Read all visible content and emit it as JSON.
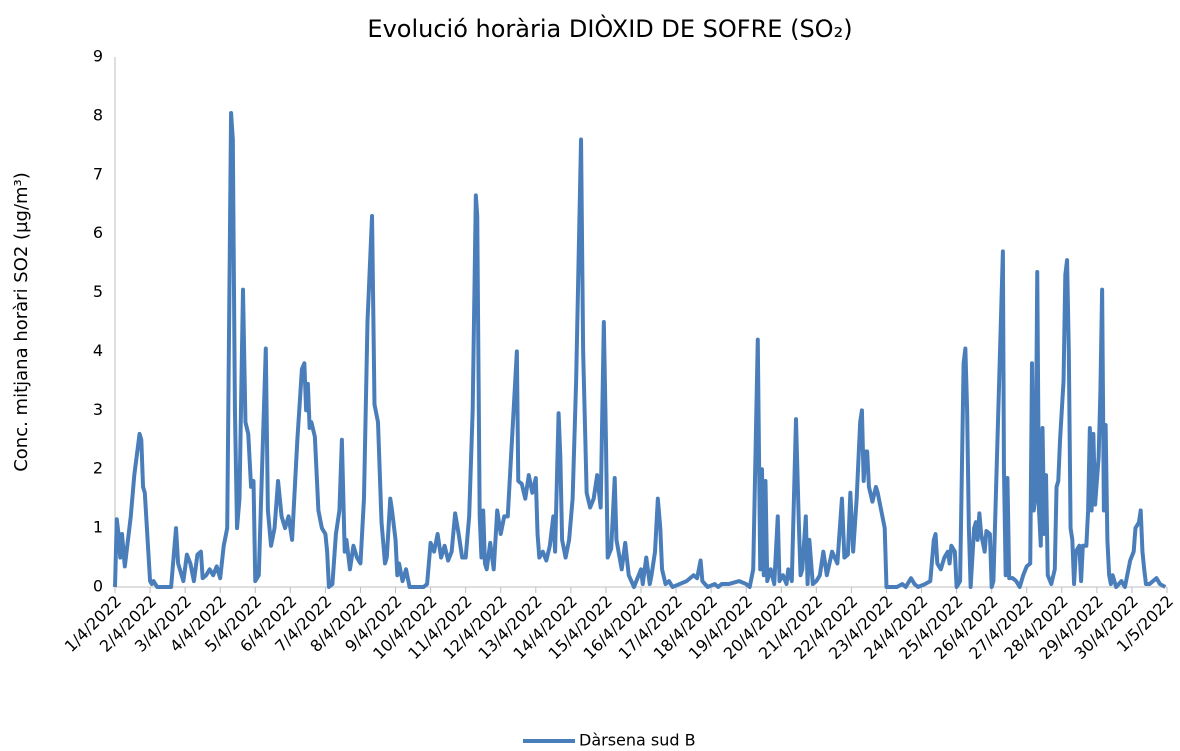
{
  "chart_data": {
    "type": "line",
    "title": "Evolució horària DIÒXID DE SOFRE (SO₂)",
    "y_label": "Conc. mitjana horàri SO2 (µg/m³)",
    "xlim": [
      0,
      30
    ],
    "xticks": [
      {
        "value": 0,
        "label": "1/4/2022"
      },
      {
        "value": 1,
        "label": "2/4/2022"
      },
      {
        "value": 2,
        "label": "3/4/2022"
      },
      {
        "value": 3,
        "label": "4/4/2022"
      },
      {
        "value": 4,
        "label": "5/4/2022"
      },
      {
        "value": 5,
        "label": "6/4/2022"
      },
      {
        "value": 6,
        "label": "7/4/2022"
      },
      {
        "value": 7,
        "label": "8/4/2022"
      },
      {
        "value": 8,
        "label": "9/4/2022"
      },
      {
        "value": 9,
        "label": "10/4/2022"
      },
      {
        "value": 10,
        "label": "11/4/2022"
      },
      {
        "value": 11,
        "label": "12/4/2022"
      },
      {
        "value": 12,
        "label": "13/4/2022"
      },
      {
        "value": 13,
        "label": "14/4/2022"
      },
      {
        "value": 14,
        "label": "15/4/2022"
      },
      {
        "value": 15,
        "label": "16/4/2022"
      },
      {
        "value": 16,
        "label": "17/4/2022"
      },
      {
        "value": 17,
        "label": "18/4/2022"
      },
      {
        "value": 18,
        "label": "19/4/2022"
      },
      {
        "value": 19,
        "label": "20/4/2022"
      },
      {
        "value": 20,
        "label": "21/4/2022"
      },
      {
        "value": 21,
        "label": "22/4/2022"
      },
      {
        "value": 22,
        "label": "23/4/2022"
      },
      {
        "value": 23,
        "label": "24/4/2022"
      },
      {
        "value": 24,
        "label": "25/4/2022"
      },
      {
        "value": 25,
        "label": "26/4/2022"
      },
      {
        "value": 26,
        "label": "27/4/2022"
      },
      {
        "value": 27,
        "label": "28/4/2022"
      },
      {
        "value": 28,
        "label": "29/4/2022"
      },
      {
        "value": 29,
        "label": "30/4/2022"
      },
      {
        "value": 30,
        "label": "1/5/2022"
      }
    ],
    "ylim": [
      0,
      9
    ],
    "yticks": [
      0,
      1,
      2,
      3,
      4,
      5,
      6,
      7,
      8,
      9
    ],
    "grid": false,
    "legend": "bottom",
    "x": [
      0,
      0.05,
      0.1,
      0.15,
      0.2,
      0.28,
      0.35,
      0.45,
      0.55,
      0.7,
      0.75,
      0.8,
      0.85,
      0.95,
      1.0,
      1.05,
      1.1,
      1.2,
      1.6,
      1.74,
      1.8,
      1.95,
      2.05,
      2.15,
      2.25,
      2.35,
      2.45,
      2.5,
      2.6,
      2.7,
      2.8,
      2.9,
      3.0,
      3.1,
      3.2,
      3.31,
      3.36,
      3.42,
      3.48,
      3.55,
      3.65,
      3.72,
      3.8,
      3.88,
      3.95,
      4.0,
      4.1,
      4.3,
      4.36,
      4.45,
      4.55,
      4.65,
      4.75,
      4.85,
      4.95,
      5.05,
      5.2,
      5.33,
      5.4,
      5.45,
      5.5,
      5.55,
      5.6,
      5.7,
      5.8,
      5.9,
      6.0,
      6.05,
      6.1,
      6.2,
      6.3,
      6.4,
      6.47,
      6.55,
      6.6,
      6.7,
      6.8,
      6.9,
      7.0,
      7.1,
      7.2,
      7.33,
      7.4,
      7.5,
      7.6,
      7.7,
      7.75,
      7.85,
      7.9,
      8.0,
      8.05,
      8.1,
      8.2,
      8.3,
      8.4,
      8.8,
      8.9,
      9.0,
      9.1,
      9.2,
      9.3,
      9.4,
      9.5,
      9.6,
      9.7,
      9.8,
      9.9,
      10.0,
      10.1,
      10.2,
      10.29,
      10.33,
      10.4,
      10.45,
      10.5,
      10.55,
      10.6,
      10.7,
      10.8,
      10.9,
      11.0,
      11.1,
      11.2,
      11.46,
      11.5,
      11.6,
      11.7,
      11.8,
      11.9,
      12.0,
      12.05,
      12.1,
      12.2,
      12.3,
      12.4,
      12.5,
      12.55,
      12.65,
      12.7,
      12.75,
      12.85,
      12.95,
      13.05,
      13.15,
      13.29,
      13.35,
      13.45,
      13.55,
      13.65,
      13.75,
      13.85,
      13.94,
      14.0,
      14.05,
      14.15,
      14.25,
      14.3,
      14.45,
      14.55,
      14.65,
      14.8,
      15.0,
      15.05,
      15.15,
      15.25,
      15.3,
      15.4,
      15.48,
      15.55,
      15.6,
      15.7,
      15.8,
      15.9,
      16.1,
      16.3,
      16.5,
      16.6,
      16.7,
      16.75,
      16.9,
      17.1,
      17.2,
      17.3,
      17.5,
      17.8,
      18.0,
      18.1,
      18.2,
      18.33,
      18.4,
      18.45,
      18.5,
      18.55,
      18.6,
      18.7,
      18.8,
      18.9,
      18.95,
      19.05,
      19.15,
      19.2,
      19.3,
      19.42,
      19.5,
      19.55,
      19.6,
      19.7,
      19.75,
      19.8,
      19.9,
      20.0,
      20.1,
      20.2,
      20.3,
      20.45,
      20.6,
      20.73,
      20.8,
      20.9,
      20.97,
      21.05,
      21.15,
      21.25,
      21.3,
      21.35,
      21.4,
      21.45,
      21.5,
      21.6,
      21.7,
      21.75,
      21.85,
      21.95,
      22.0,
      22.3,
      22.45,
      22.55,
      22.7,
      22.8,
      22.9,
      23.1,
      23.25,
      23.35,
      23.4,
      23.45,
      23.55,
      23.65,
      23.75,
      23.8,
      23.85,
      23.95,
      24.0,
      24.1,
      24.2,
      24.25,
      24.3,
      24.35,
      24.4,
      24.5,
      24.55,
      24.6,
      24.65,
      24.7,
      24.8,
      24.85,
      24.95,
      25.0,
      25.05,
      25.32,
      25.35,
      25.4,
      25.45,
      25.5,
      25.6,
      25.7,
      25.8,
      25.9,
      26.0,
      26.1,
      26.15,
      26.2,
      26.25,
      26.3,
      26.35,
      26.4,
      26.45,
      26.5,
      26.55,
      26.6,
      26.7,
      26.8,
      26.85,
      26.9,
      26.95,
      27.05,
      27.1,
      27.15,
      27.2,
      27.25,
      27.3,
      27.35,
      27.4,
      27.5,
      27.55,
      27.6,
      27.7,
      27.75,
      27.8,
      27.85,
      27.9,
      27.95,
      28.05,
      28.1,
      28.15,
      28.2,
      28.25,
      28.3,
      28.35,
      28.4,
      28.45,
      28.55,
      28.7,
      28.8,
      28.9,
      28.95,
      29.05,
      29.1,
      29.2,
      29.25,
      29.3,
      29.35,
      29.4,
      29.5,
      29.6,
      29.7,
      29.8,
      29.95
    ],
    "series": [
      {
        "name": "Dàrsena sud B",
        "color": "#4a7ebb",
        "values": [
          0,
          1.15,
          0.9,
          0.5,
          0.9,
          0.35,
          0.7,
          1.2,
          1.9,
          2.6,
          2.5,
          1.7,
          1.6,
          0.6,
          0.1,
          0.05,
          0.1,
          0,
          0,
          1.0,
          0.4,
          0.1,
          0.55,
          0.4,
          0.1,
          0.55,
          0.6,
          0.15,
          0.2,
          0.3,
          0.2,
          0.35,
          0.15,
          0.7,
          1.0,
          8.05,
          7.6,
          3.0,
          1.0,
          1.5,
          5.05,
          2.8,
          2.6,
          1.7,
          1.8,
          0.1,
          0.2,
          4.05,
          1.3,
          0.7,
          1.0,
          1.8,
          1.2,
          1.0,
          1.2,
          0.8,
          2.5,
          3.7,
          3.8,
          3.0,
          3.45,
          2.7,
          2.8,
          2.55,
          1.3,
          1.0,
          0.9,
          0.6,
          0,
          0.05,
          0.9,
          1.3,
          2.5,
          0.6,
          0.8,
          0.3,
          0.7,
          0.5,
          0.4,
          1.5,
          4.5,
          6.3,
          3.1,
          2.8,
          1.1,
          0.4,
          0.5,
          1.5,
          1.3,
          0.8,
          0.2,
          0.4,
          0.1,
          0.3,
          0,
          0,
          0.05,
          0.75,
          0.6,
          0.9,
          0.5,
          0.7,
          0.45,
          0.6,
          1.25,
          0.9,
          0.5,
          0.5,
          1.2,
          3.0,
          6.65,
          6.3,
          1.2,
          0.5,
          1.3,
          0.4,
          0.3,
          0.75,
          0.3,
          1.3,
          0.9,
          1.2,
          1.2,
          4.0,
          1.8,
          1.75,
          1.5,
          1.9,
          1.6,
          1.85,
          0.9,
          0.5,
          0.6,
          0.45,
          0.7,
          1.2,
          0.6,
          2.95,
          2.2,
          0.8,
          0.5,
          0.8,
          1.5,
          3.5,
          7.6,
          4.0,
          1.6,
          1.35,
          1.5,
          1.9,
          1.35,
          4.5,
          2.5,
          0.5,
          0.65,
          1.85,
          0.8,
          0.3,
          0.75,
          0.2,
          0,
          0.3,
          0.05,
          0.5,
          0.05,
          0.2,
          0.6,
          1.5,
          1.0,
          0.3,
          0.05,
          0.1,
          0,
          0.05,
          0.1,
          0.2,
          0.15,
          0.45,
          0.1,
          0,
          0.05,
          0,
          0.05,
          0.05,
          0.1,
          0.05,
          0,
          0.3,
          4.2,
          0.3,
          2.0,
          0.2,
          1.8,
          0.1,
          0.3,
          0.05,
          1.2,
          0.1,
          0.2,
          0.05,
          0.3,
          0.1,
          2.85,
          1.1,
          0.2,
          0.3,
          1.2,
          0.05,
          0.8,
          0.05,
          0.1,
          0.2,
          0.6,
          0.2,
          0.6,
          0.4,
          1.5,
          0.5,
          0.55,
          1.6,
          0.6,
          1.5,
          2.8,
          3.0,
          1.8,
          2.3,
          2.3,
          1.7,
          1.45,
          1.7,
          1.6,
          1.3,
          1.0,
          0,
          0,
          0.05,
          0,
          0.15,
          0.05,
          0,
          0.05,
          0.1,
          0.8,
          0.9,
          0.4,
          0.3,
          0.5,
          0.6,
          0.4,
          0.7,
          0.6,
          0,
          0.1,
          3.8,
          4.05,
          3.0,
          1.0,
          0,
          1.0,
          1.1,
          0.8,
          1.25,
          0.9,
          0.6,
          0.95,
          0.9,
          0,
          0.1,
          5.7,
          2.0,
          0.2,
          1.85,
          0.15,
          0.15,
          0.1,
          0,
          0.2,
          0.35,
          0.4,
          3.8,
          1.3,
          1.5,
          5.35,
          1.3,
          0.7,
          2.7,
          0.9,
          1.9,
          0.2,
          0.05,
          0.3,
          1.7,
          1.8,
          2.5,
          3.5,
          5.3,
          5.55,
          4.0,
          1.0,
          0.8,
          0.05,
          0.6,
          0.7,
          0.1,
          0.7,
          0.7,
          1.3,
          2.7,
          1.3,
          2.6,
          1.4,
          2.2,
          3.3,
          5.05,
          1.3,
          2.75,
          0.8,
          0.2,
          0.05,
          0.2,
          0,
          0.1,
          0,
          0.3,
          0.45,
          0.6,
          1.0,
          1.1,
          1.3,
          0.6,
          0.3,
          0.05,
          0.05,
          0.1,
          0.15,
          0.05,
          0
        ]
      }
    ]
  }
}
